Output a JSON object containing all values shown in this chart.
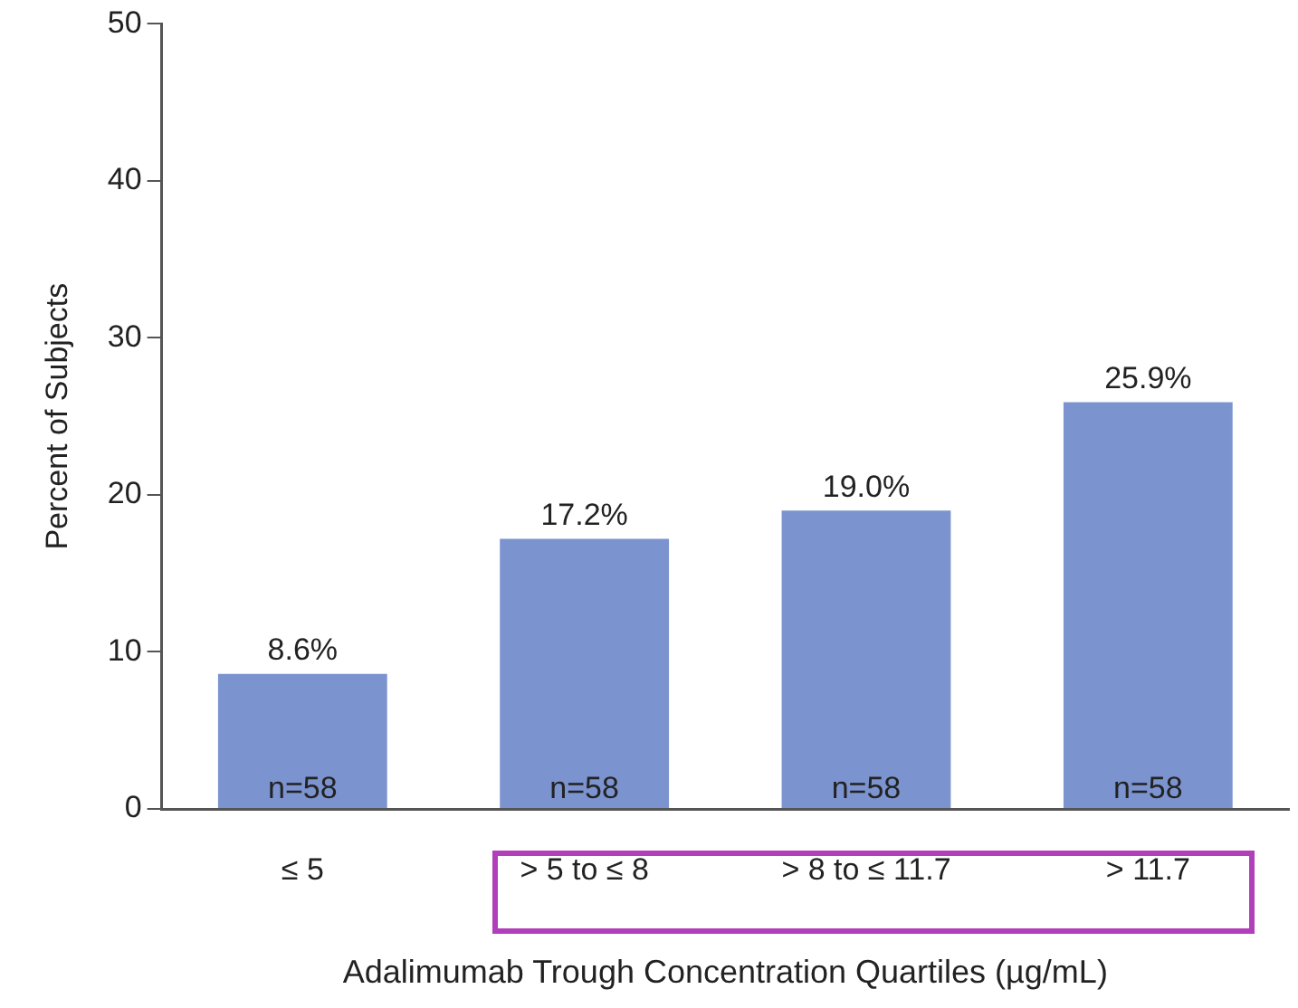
{
  "chart_data": {
    "type": "bar",
    "xlabel": "Adalimumab Trough Concentration Quartiles (µg/mL)",
    "ylabel": "Percent of Subjects",
    "categories": [
      "≤ 5",
      "> 5 to ≤ 8",
      "> 8 to ≤ 11.7",
      "> 11.7"
    ],
    "values": [
      8.6,
      17.2,
      19.0,
      25.9
    ],
    "value_labels": [
      "8.6%",
      "17.2%",
      "19.0%",
      "25.9%"
    ],
    "color": "#7b93cf",
    "ylim": [
      0,
      50
    ],
    "yticks": [
      0,
      10,
      20,
      30,
      40,
      50
    ],
    "grid": false,
    "legend": false,
    "annotations": [
      {
        "text": "n=58",
        "x": "≤ 5",
        "y": 0
      },
      {
        "text": "n=58",
        "x": "> 5 to ≤ 8",
        "y": 0
      },
      {
        "text": "n=58",
        "x": "> 8 to ≤ 11.7",
        "y": 0
      },
      {
        "text": "n=58",
        "x": "> 11.7",
        "y": 0
      }
    ]
  }
}
